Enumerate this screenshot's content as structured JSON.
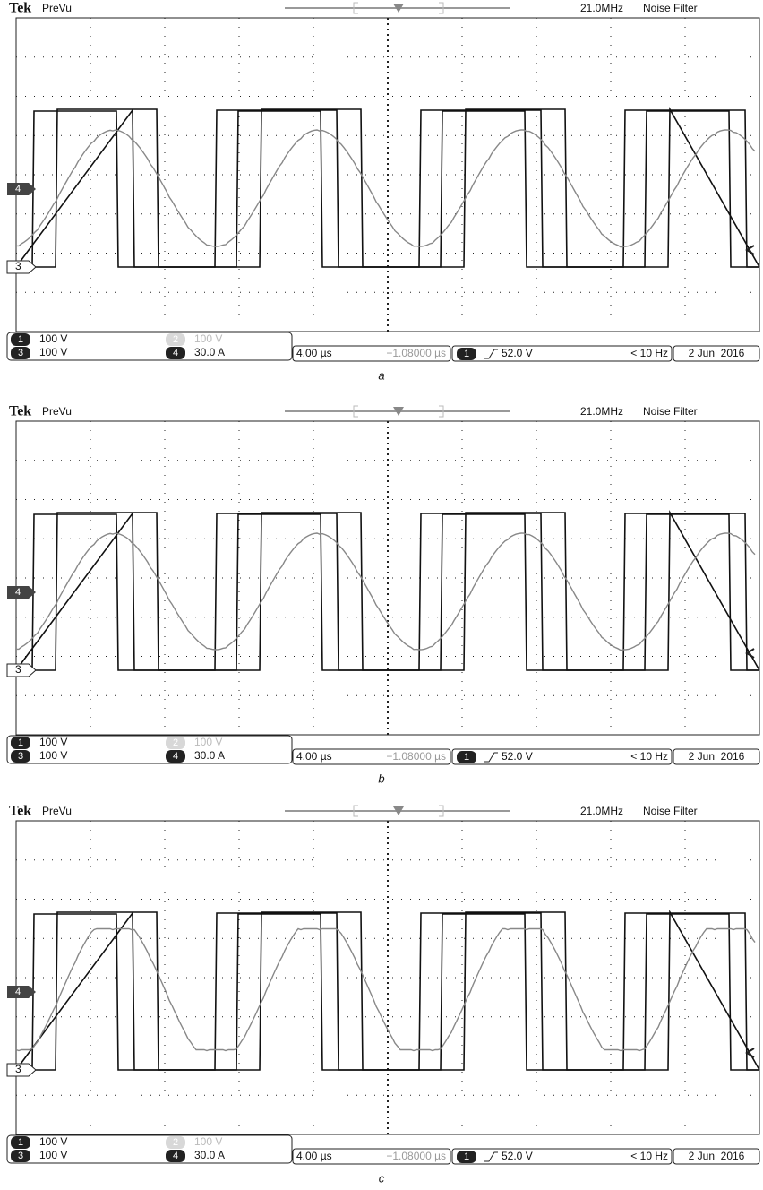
{
  "panels": [
    {
      "caption": "a",
      "header": {
        "brand": "Tek",
        "mode": "PreVu",
        "bandwidth": "21.0MHz",
        "filter": "Noise Filter"
      },
      "markers": {
        "ch4": "4",
        "ch3": "3"
      },
      "channels": [
        {
          "number": "1",
          "scale": "100 V"
        },
        {
          "number": "2",
          "scale": "100 V"
        },
        {
          "number": "3",
          "scale": "100 V"
        },
        {
          "number": "4",
          "scale": "30.0 A"
        }
      ],
      "timebase": "4.00 µs",
      "position": "−1.08000 µs",
      "trigger": {
        "source": "1",
        "level": "52.0 V"
      },
      "frequency": "< 10 Hz",
      "date": "2 Jun  2016"
    },
    {
      "caption": "b",
      "header": {
        "brand": "Tek",
        "mode": "PreVu",
        "bandwidth": "21.0MHz",
        "filter": "Noise Filter"
      },
      "markers": {
        "ch4": "4",
        "ch3": "3"
      },
      "channels": [
        {
          "number": "1",
          "scale": "100 V"
        },
        {
          "number": "2",
          "scale": "100 V"
        },
        {
          "number": "3",
          "scale": "100 V"
        },
        {
          "number": "4",
          "scale": "30.0 A"
        }
      ],
      "timebase": "4.00 µs",
      "position": "−1.08000 µs",
      "trigger": {
        "source": "1",
        "level": "52.0 V"
      },
      "frequency": "< 10 Hz",
      "date": "2 Jun  2016"
    },
    {
      "caption": "c",
      "header": {
        "brand": "Tek",
        "mode": "PreVu",
        "bandwidth": "21.0MHz",
        "filter": "Noise Filter"
      },
      "markers": {
        "ch4": "4",
        "ch3": "3"
      },
      "channels": [
        {
          "number": "1",
          "scale": "100 V"
        },
        {
          "number": "2",
          "scale": "100 V"
        },
        {
          "number": "3",
          "scale": "100 V"
        },
        {
          "number": "4",
          "scale": "30.0 A"
        }
      ],
      "timebase": "4.00 µs",
      "position": "−1.08000 µs",
      "trigger": {
        "source": "1",
        "level": "52.0 V"
      },
      "frequency": "< 10 Hz",
      "date": "2 Jun  2016"
    }
  ]
}
